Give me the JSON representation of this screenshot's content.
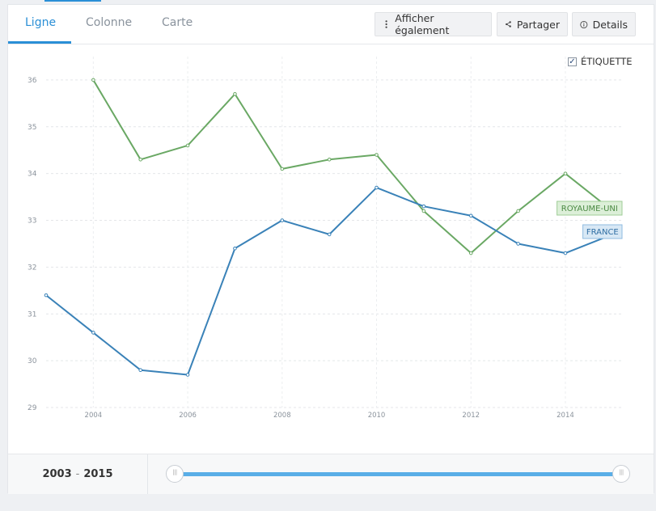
{
  "tabs": [
    {
      "label": "Ligne",
      "active": true
    },
    {
      "label": "Colonne",
      "active": false
    },
    {
      "label": "Carte",
      "active": false
    }
  ],
  "toolbar": {
    "show_also_label": "Afficher également",
    "share_label": "Partager",
    "details_label": "Details"
  },
  "label_toggle": {
    "text": "ÉTIQUETTE",
    "checked": true
  },
  "range": {
    "start": "2003",
    "end": "2015"
  },
  "colors": {
    "accent": "#2a8fd6",
    "france": "#3a82b8",
    "uk": "#6aa864"
  },
  "chart_data": {
    "type": "line",
    "x": [
      2003,
      2004,
      2005,
      2006,
      2007,
      2008,
      2009,
      2010,
      2011,
      2012,
      2013,
      2014,
      2015
    ],
    "xticks": [
      2004,
      2006,
      2008,
      2010,
      2012,
      2014
    ],
    "yticks": [
      29,
      30,
      31,
      32,
      33,
      34,
      35,
      36
    ],
    "ylim": [
      29,
      36.5
    ],
    "xlim": [
      2003,
      2015.2
    ],
    "grid": true,
    "series": [
      {
        "name": "ROYAUME-UNI",
        "color": "#6aa864",
        "label_bg": "#dcefd8",
        "label_border": "#9fcc97",
        "label_color": "#4b8a43",
        "values": [
          null,
          36.0,
          34.3,
          34.6,
          35.7,
          34.1,
          34.3,
          34.4,
          33.2,
          32.3,
          33.2,
          34.0,
          33.2
        ]
      },
      {
        "name": "FRANCE",
        "color": "#3a82b8",
        "label_bg": "#d8e8f5",
        "label_border": "#8fbbe0",
        "label_color": "#2f6ea3",
        "values": [
          31.4,
          30.6,
          29.8,
          29.7,
          32.4,
          33.0,
          32.7,
          33.7,
          33.3,
          33.1,
          32.5,
          32.3,
          32.7
        ]
      }
    ]
  }
}
